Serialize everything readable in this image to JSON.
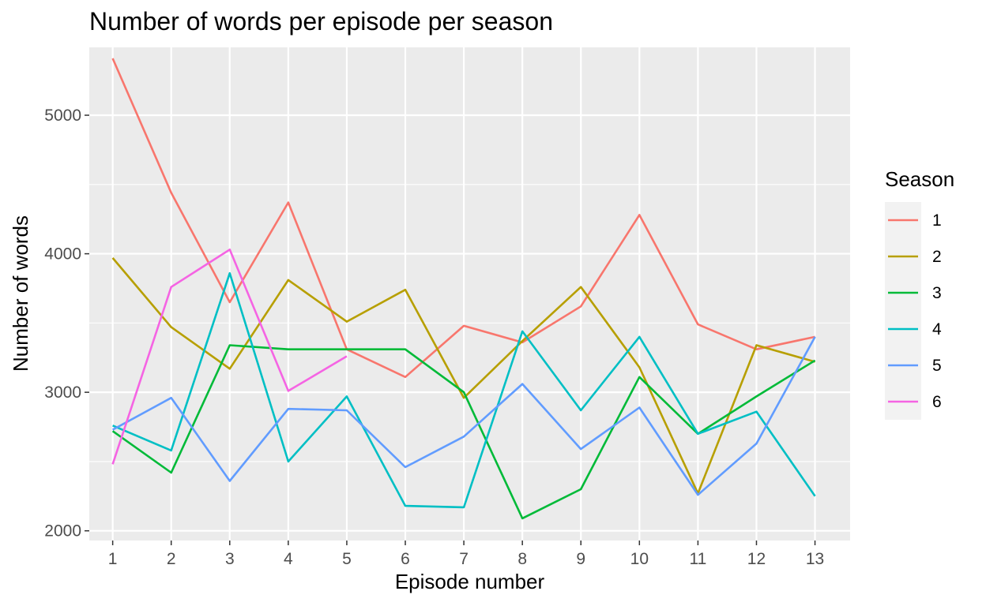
{
  "chart_data": {
    "type": "line",
    "title": "Number of words per episode per season",
    "xlabel": "Episode number",
    "ylabel": "Number of words",
    "x": [
      1,
      2,
      3,
      4,
      5,
      6,
      7,
      8,
      9,
      10,
      11,
      12,
      13
    ],
    "xlim": [
      0.6,
      13.6
    ],
    "ylim": [
      1930,
      5490
    ],
    "yticks": [
      2000,
      3000,
      4000,
      5000
    ],
    "grid": true,
    "legend": {
      "title": "Season",
      "position": "right"
    },
    "series": [
      {
        "name": "1",
        "color": "#F8766D",
        "values": [
          5410,
          4440,
          3650,
          4370,
          3310,
          3110,
          3480,
          3360,
          3620,
          4280,
          3490,
          3310,
          3400
        ]
      },
      {
        "name": "2",
        "color": "#B79F00",
        "values": [
          3970,
          3470,
          3170,
          3810,
          3510,
          3740,
          2960,
          3370,
          3760,
          3180,
          2270,
          3340,
          3220
        ]
      },
      {
        "name": "3",
        "color": "#00BA38",
        "values": [
          2720,
          2420,
          3340,
          3310,
          3310,
          3310,
          3000,
          2090,
          2300,
          3110,
          2700,
          2970,
          3230
        ]
      },
      {
        "name": "4",
        "color": "#00BFC4",
        "values": [
          2760,
          2580,
          3860,
          2500,
          2970,
          2180,
          2170,
          3440,
          2870,
          3400,
          2700,
          2860,
          2250
        ]
      },
      {
        "name": "5",
        "color": "#619CFF",
        "values": [
          2730,
          2960,
          2360,
          2880,
          2870,
          2460,
          2680,
          3060,
          2590,
          2890,
          2260,
          2630,
          3400
        ]
      },
      {
        "name": "6",
        "color": "#F564E3",
        "values": [
          2480,
          3760,
          4030,
          3010,
          3260,
          null,
          null,
          null,
          null,
          null,
          null,
          null,
          null
        ]
      }
    ]
  }
}
